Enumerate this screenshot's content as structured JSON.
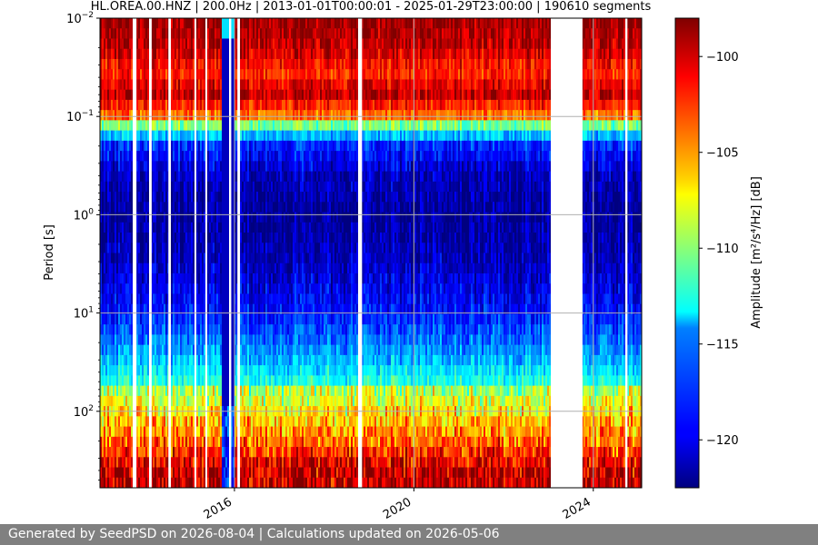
{
  "chart_data": {
    "type": "heatmap",
    "title": "HL.OREA.00.HNZ | 200.0Hz | 2013-01-01T00:00:01 - 2025-01-29T23:00:00 | 190610 segments",
    "xlabel": "",
    "ylabel": "Period [s]",
    "x_scale": "time",
    "xlim": [
      "2013-01-01",
      "2025-01-29"
    ],
    "x_ticks": [
      "2016",
      "2020",
      "2024"
    ],
    "y_scale": "log",
    "y_inverted": true,
    "ylim": [
      0.01,
      600
    ],
    "y_ticks": [
      {
        "value": 0.01,
        "base": "10",
        "exp": "−2"
      },
      {
        "value": 0.1,
        "base": "10",
        "exp": "−1"
      },
      {
        "value": 1,
        "base": "10",
        "exp": "0"
      },
      {
        "value": 10,
        "base": "10",
        "exp": "1"
      },
      {
        "value": 100,
        "base": "10",
        "exp": "2"
      }
    ],
    "grid": true,
    "colormap": "jet",
    "colorbar": {
      "label": "Amplitude [m²/s⁴/Hz] [dB]",
      "range": [
        -122.5,
        -98
      ],
      "ticks": [
        -100,
        -105,
        -110,
        -115,
        -120
      ]
    },
    "amplitude_profile": [
      {
        "period": 0.01,
        "db": -98.5
      },
      {
        "period": 0.02,
        "db": -99.5
      },
      {
        "period": 0.035,
        "db": -102
      },
      {
        "period": 0.06,
        "db": -99.5
      },
      {
        "period": 0.1,
        "db": -104
      },
      {
        "period": 0.13,
        "db": -112
      },
      {
        "period": 0.2,
        "db": -118.5
      },
      {
        "period": 0.4,
        "db": -121
      },
      {
        "period": 1,
        "db": -122
      },
      {
        "period": 3,
        "db": -121
      },
      {
        "period": 10,
        "db": -119
      },
      {
        "period": 30,
        "db": -115
      },
      {
        "period": 70,
        "db": -111
      },
      {
        "period": 200,
        "db": -106
      },
      {
        "period": 400,
        "db": -102
      }
    ],
    "data_gaps": [
      [
        "2013-10-01",
        "2013-10-25"
      ],
      [
        "2014-02-08",
        "2014-02-26"
      ],
      [
        "2014-07-12",
        "2014-07-25"
      ],
      [
        "2015-02-10",
        "2015-02-22"
      ],
      [
        "2015-05-10",
        "2015-05-22"
      ],
      [
        "2015-11-25",
        "2015-12-06"
      ],
      [
        "2016-01-25",
        "2016-02-15"
      ],
      [
        "2018-10-10",
        "2018-11-05"
      ],
      [
        "2023-01-20",
        "2023-10-05"
      ],
      [
        "2024-09-20",
        "2024-10-05"
      ]
    ],
    "anomaly": {
      "start": "2015-09-10",
      "end": "2015-12-31",
      "db": -121,
      "top_db": -114
    }
  },
  "footer": {
    "text": "Generated by SeedPSD on 2026-08-04 | Calculations updated on 2026-05-06"
  }
}
